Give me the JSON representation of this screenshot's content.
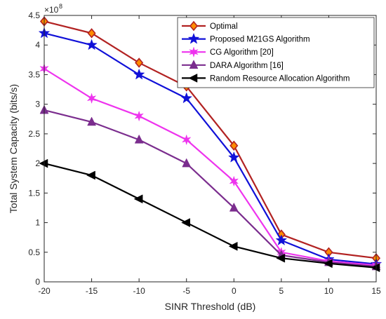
{
  "chart_data": {
    "type": "line",
    "title": "",
    "xlabel": "SINR Threshold (dB)",
    "ylabel": "Total System Capacity (bits/s)",
    "y_multiplier_base": "×10",
    "y_multiplier_exp": "8",
    "x": [
      -20,
      -15,
      -10,
      -5,
      0,
      5,
      10,
      15
    ],
    "xlim": [
      -20,
      15
    ],
    "ylim": [
      0,
      4.5
    ],
    "xticks": [
      "-20",
      "-15",
      "-10",
      "-5",
      "0",
      "5",
      "10",
      "15"
    ],
    "yticks": [
      "0",
      "0.5",
      "1",
      "1.5",
      "2",
      "2.5",
      "3",
      "3.5",
      "4",
      "4.5"
    ],
    "legend_position": "top-right",
    "grid": false,
    "series": [
      {
        "name": "Optimal",
        "color": "#b22222",
        "marker": "diamond",
        "values": [
          4.4,
          4.2,
          3.7,
          3.3,
          2.3,
          0.8,
          0.5,
          0.4
        ]
      },
      {
        "name": "Proposed M21GS Algorithm",
        "color": "#1010d8",
        "marker": "star5",
        "values": [
          4.2,
          4.0,
          3.5,
          3.1,
          2.1,
          0.7,
          0.38,
          0.3
        ]
      },
      {
        "name": "CG Algorithm [20]",
        "color": "#ee33ee",
        "marker": "star6",
        "values": [
          3.6,
          3.1,
          2.8,
          2.4,
          1.7,
          0.5,
          0.35,
          0.28
        ]
      },
      {
        "name": "DARA Algorithm [16]",
        "color": "#7b2d8e",
        "marker": "triangle-up",
        "values": [
          2.9,
          2.7,
          2.4,
          2.0,
          1.25,
          0.45,
          0.33,
          0.26
        ]
      },
      {
        "name": "Random Resource Allocation Algorithm",
        "color": "#000000",
        "marker": "triangle-left",
        "values": [
          2.0,
          1.8,
          1.4,
          1.0,
          0.6,
          0.4,
          0.31,
          0.24
        ]
      }
    ]
  }
}
